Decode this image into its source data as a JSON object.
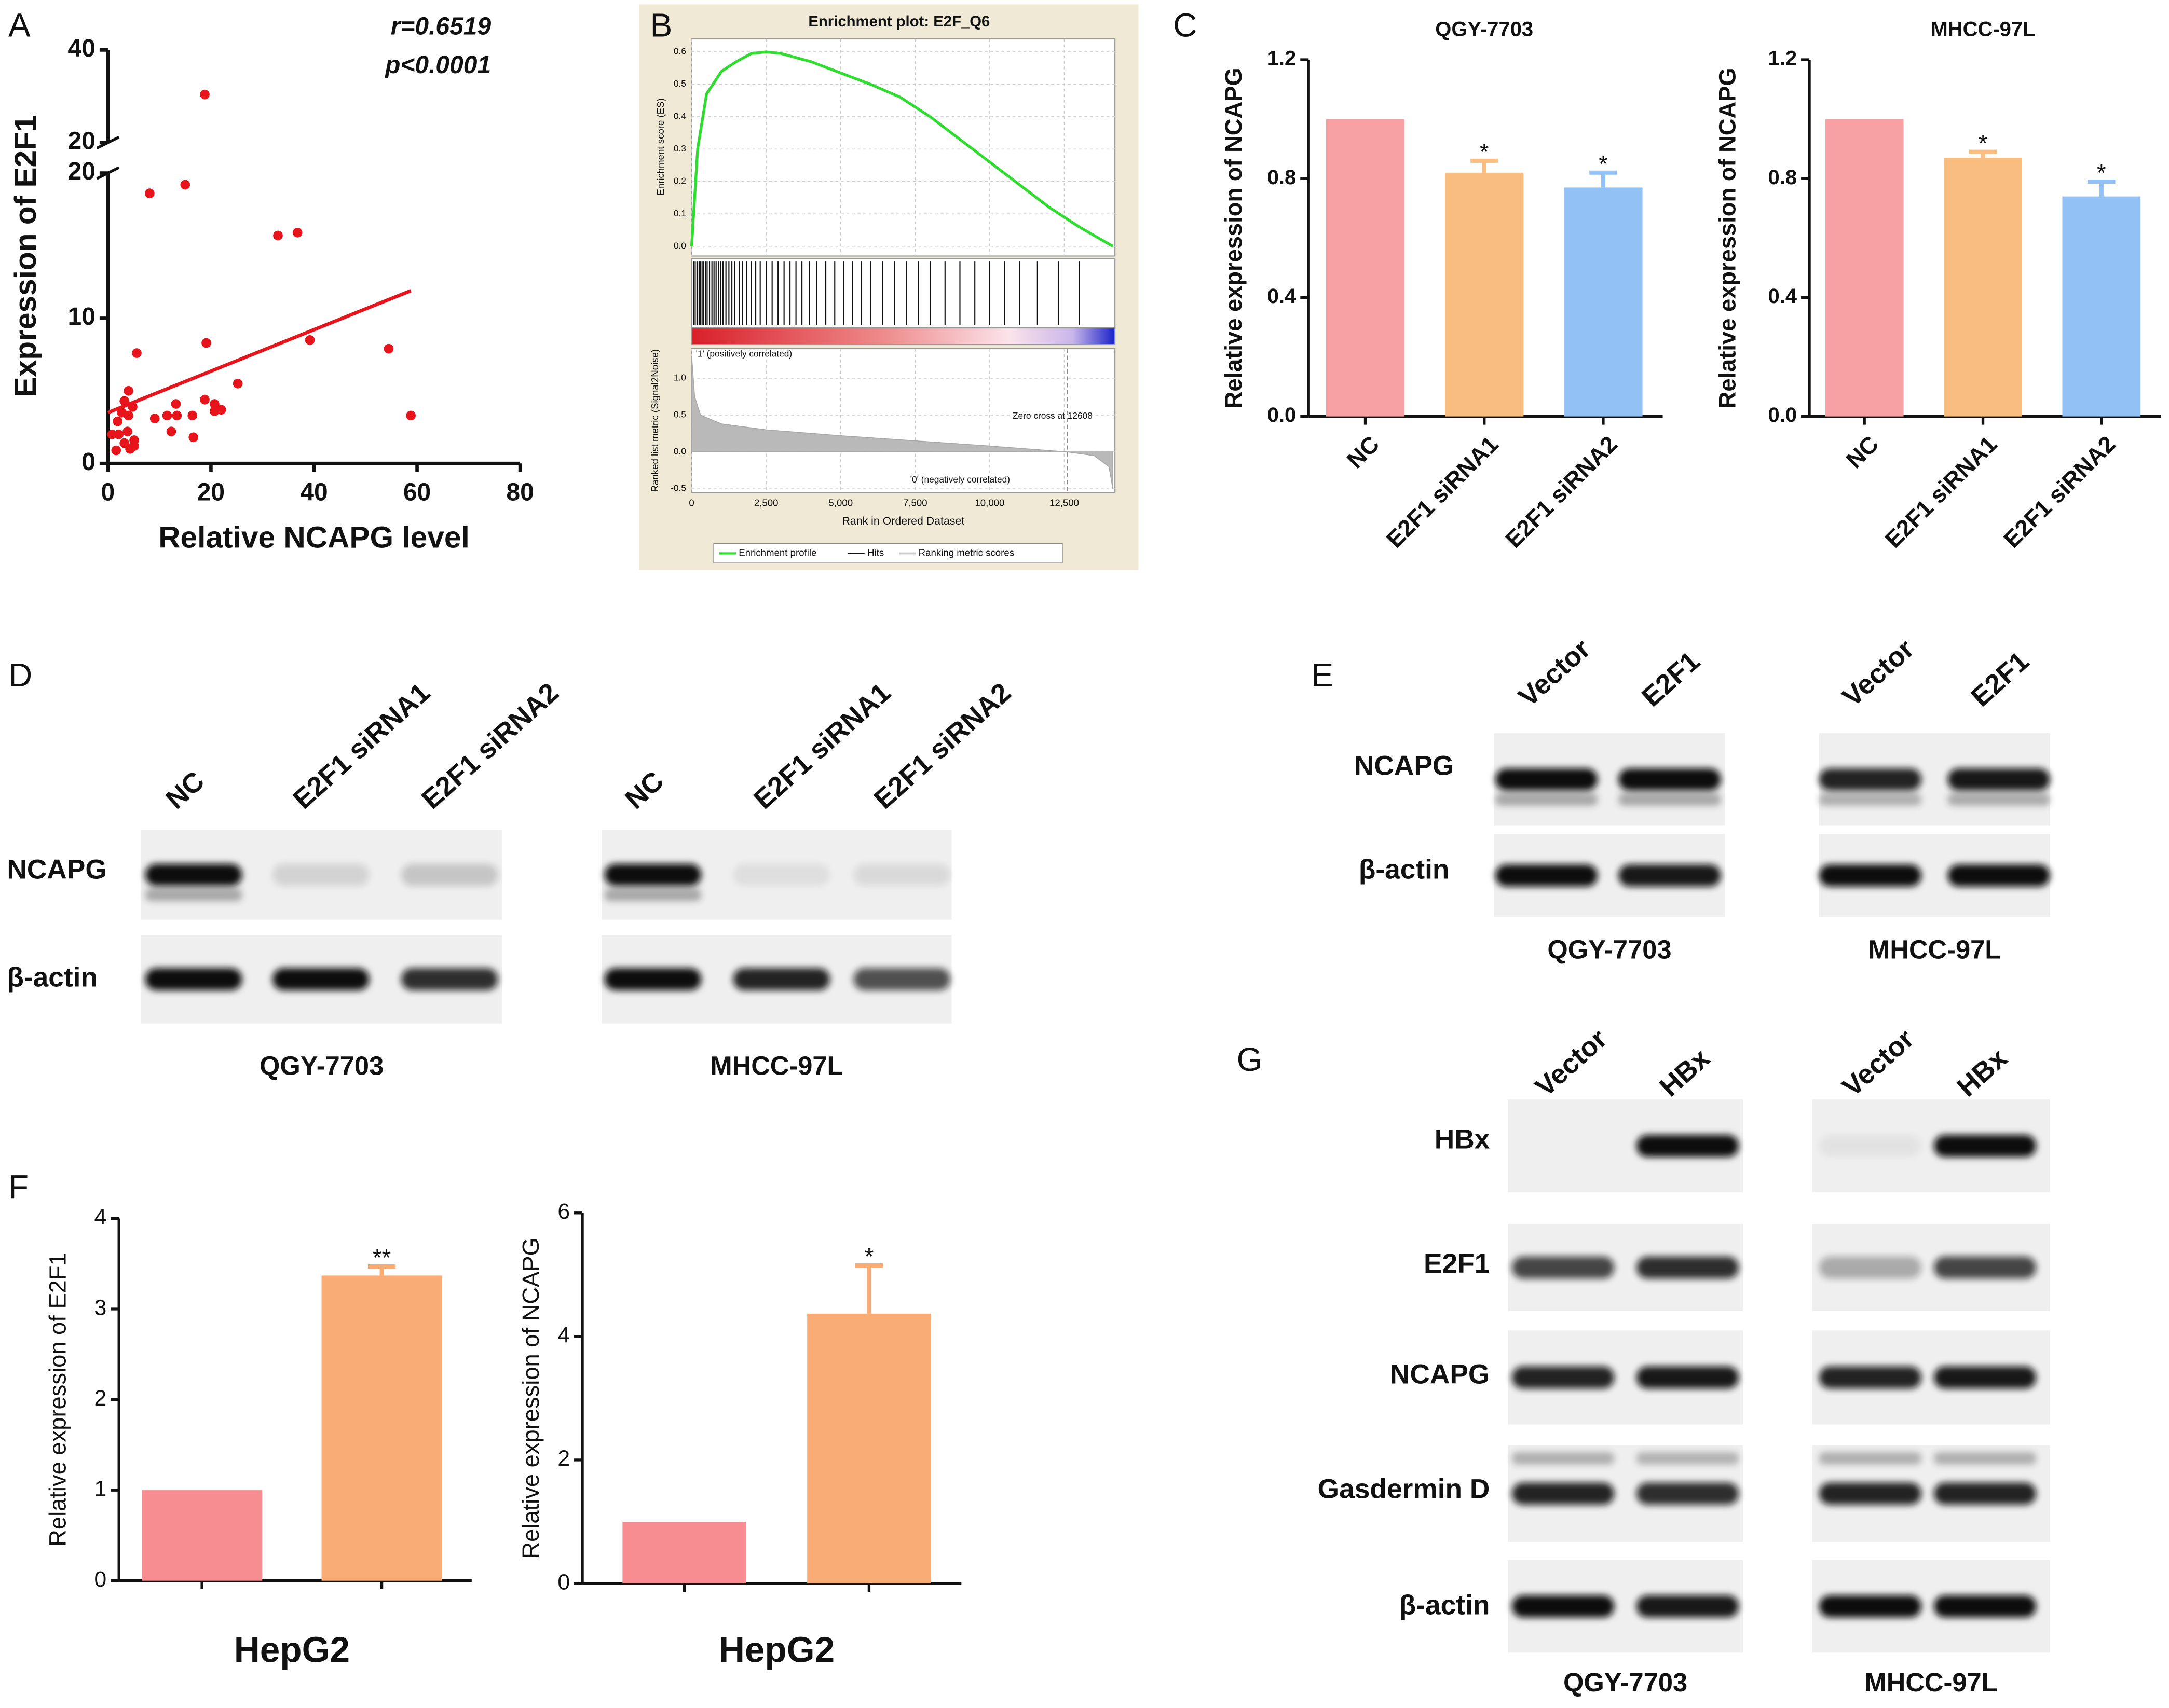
{
  "chart_data": [
    {
      "type": "scatter",
      "panel": "A",
      "x_label": "Relative NCAPG level",
      "y_label": "Expression of E2F1",
      "annotations": [
        "r=0.6519",
        "p<0.0001"
      ],
      "color": "#e8141b",
      "x": [
        18.8,
        8.1,
        15.0,
        33.0,
        36.8,
        19.1,
        39.2,
        54.5,
        5.6,
        58.8,
        25.2,
        18.8,
        20.7,
        22.0,
        20.7,
        16.4,
        13.2,
        13.4,
        11.5,
        9.1,
        12.3,
        16.6,
        4.0,
        3.2,
        4.8,
        2.7,
        1.9,
        4.0,
        0.8,
        2.1,
        3.8,
        5.1,
        3.2,
        1.6,
        4.3,
        5.1
      ],
      "y": [
        30.4,
        18.6,
        19.2,
        15.7,
        15.9,
        8.3,
        8.5,
        7.9,
        7.6,
        3.3,
        5.5,
        4.4,
        4.1,
        3.7,
        3.6,
        3.3,
        4.1,
        3.3,
        3.3,
        3.1,
        2.2,
        1.8,
        5.0,
        4.3,
        3.9,
        3.5,
        2.9,
        3.3,
        2.0,
        2.0,
        2.2,
        1.6,
        1.4,
        0.9,
        1.0,
        1.2
      ],
      "fit": {
        "x": [
          0,
          58.8
        ],
        "y": [
          3.5,
          11.9
        ]
      },
      "xlim": [
        0,
        80
      ],
      "xticks": [
        0,
        20,
        40,
        60,
        80
      ],
      "ysegments": [
        {
          "ylim": [
            0,
            20
          ],
          "yticks": [
            0,
            10,
            20
          ]
        },
        {
          "ylim": [
            20,
            40
          ],
          "yticks": [
            20,
            40
          ]
        }
      ]
    },
    {
      "type": "gsea",
      "panel": "B",
      "title": "Enrichment plot: E2F_Q6",
      "x_label": "Rank in Ordered Dataset",
      "es_label": "Enrichment score (ES)",
      "metric_label": "Ranked list metric (Signal2Noise)",
      "xlim": [
        0,
        14200
      ],
      "xticks": [
        0,
        {
          "value": 2500,
          "label": "2,500"
        },
        {
          "value": 5000,
          "label": "5,000"
        },
        {
          "value": 7500,
          "label": "7,500"
        },
        {
          "value": 10000,
          "label": "10,000"
        },
        {
          "value": 12500,
          "label": "12,500"
        }
      ],
      "es_ylim": [
        -0.03,
        0.64
      ],
      "es_yticks": [
        {
          "value": 0,
          "label": "0.0"
        },
        0.1,
        0.2,
        0.3,
        0.4,
        0.5,
        0.6
      ],
      "metric_ylim": [
        -0.55,
        1.4
      ],
      "metric_yticks": [
        -0.5,
        {
          "value": 0,
          "label": "0.0"
        },
        0.5,
        {
          "value": 1,
          "label": "1.0"
        }
      ],
      "es": {
        "color": "#2fdc2f",
        "x": [
          0,
          200,
          500,
          1000,
          1500,
          2000,
          2500,
          3000,
          4000,
          5000,
          6000,
          7000,
          8000,
          9000,
          10000,
          11000,
          12000,
          13000,
          14130
        ],
        "values": [
          0,
          0.3,
          0.47,
          0.54,
          0.57,
          0.595,
          0.6,
          0.595,
          0.57,
          0.535,
          0.5,
          0.46,
          0.4,
          0.33,
          0.26,
          0.19,
          0.12,
          0.06,
          0
        ]
      },
      "hits": [
        60,
        120,
        180,
        250,
        300,
        350,
        400,
        470,
        520,
        600,
        680,
        750,
        820,
        900,
        980,
        1050,
        1150,
        1250,
        1350,
        1450,
        1600,
        1700,
        1850,
        2000,
        2150,
        2300,
        2500,
        2700,
        2900,
        3100,
        3300,
        3500,
        3700,
        3950,
        4200,
        4500,
        4800,
        5100,
        5400,
        5700,
        6000,
        6400,
        6800,
        7200,
        7600,
        8000,
        8500,
        9000,
        9500,
        10000,
        10500,
        11000,
        11600,
        12300,
        13000
      ],
      "metric": {
        "x": [
          0,
          100,
          300,
          1000,
          2500,
          5000,
          7500,
          10000,
          12608,
          13500,
          14000,
          14130
        ],
        "values": [
          1.3,
          0.75,
          0.5,
          0.38,
          0.3,
          0.22,
          0.15,
          0.08,
          0,
          -0.05,
          -0.2,
          -0.5
        ]
      },
      "zero_cross": 12608,
      "annotations": [
        "'1' (positively correlated)",
        "'0' (negatively correlated)",
        "Zero cross at 12608"
      ],
      "legend": [
        "Enrichment profile",
        "Hits",
        "Ranking metric scores"
      ]
    },
    {
      "type": "bar",
      "panel": "C",
      "title": "QGY-7703",
      "y_label": "Relative expression of NCAPG",
      "categories": [
        "NC",
        "E2F1 siRNA1",
        "E2F1 siRNA2"
      ],
      "values": [
        1.0,
        0.82,
        0.77
      ],
      "errors": [
        null,
        0.04,
        0.05
      ],
      "significance": [
        null,
        "*",
        "*"
      ],
      "colors": [
        "#f8a1a4",
        "#f9be7f",
        "#91c1f5"
      ],
      "ylim": [
        0,
        1.2
      ],
      "yticks": [
        {
          "value": 0,
          "label": "0.0"
        },
        0.4,
        0.8,
        1.2
      ]
    },
    {
      "type": "bar",
      "title": "MHCC-97L",
      "y_label": "Relative expression of NCAPG",
      "categories": [
        "NC",
        "E2F1 siRNA1",
        "E2F1 siRNA2"
      ],
      "values": [
        1.0,
        0.87,
        0.74
      ],
      "errors": [
        null,
        0.02,
        0.05
      ],
      "significance": [
        null,
        "*",
        "*"
      ],
      "colors": [
        "#f8a1a4",
        "#f9be7f",
        "#91c1f5"
      ],
      "ylim": [
        0,
        1.2
      ],
      "yticks": [
        {
          "value": 0,
          "label": "0.0"
        },
        0.4,
        0.8,
        1.2
      ]
    },
    {
      "type": "bar",
      "panel": "F",
      "x_label": "HepG2",
      "y_label": "Relative expression of E2F1",
      "categories": [
        null,
        null
      ],
      "values": [
        1,
        3.37
      ],
      "errors": [
        null,
        0.1
      ],
      "significance": [
        null,
        "**"
      ],
      "colors": [
        "#f78d90",
        "#f9ad74"
      ],
      "ylim": [
        0,
        4
      ],
      "yticks": [
        0,
        1,
        2,
        3,
        4
      ]
    },
    {
      "type": "bar",
      "x_label": "HepG2",
      "y_label": "Relative expression of NCAPG",
      "categories": [
        null,
        null
      ],
      "values": [
        1,
        4.37
      ],
      "errors": [
        null,
        0.78
      ],
      "significance": [
        null,
        "*"
      ],
      "colors": [
        "#f78d90",
        "#f9ad74"
      ],
      "ylim": [
        0,
        6
      ],
      "yticks": [
        0,
        2,
        4,
        6
      ]
    }
  ],
  "blots": [
    {
      "panel": "D",
      "lanes": [
        "NC",
        "E2F1 siRNA1",
        "E2F1 siRNA2"
      ],
      "proteins": [
        "NCAPG",
        "β-actin"
      ],
      "cell_lines": [
        "QGY-7703",
        "MHCC-97L"
      ]
    },
    {
      "panel": "E",
      "lanes": [
        "Vector",
        "E2F1"
      ],
      "proteins": [
        "NCAPG",
        "β-actin"
      ],
      "cell_lines": [
        "QGY-7703",
        "MHCC-97L"
      ]
    },
    {
      "panel": "G",
      "lanes": [
        "Vector",
        "HBx"
      ],
      "proteins": [
        "HBx",
        "E2F1",
        "NCAPG",
        "Gasdermin D",
        "β-actin"
      ],
      "cell_lines": [
        "QGY-7703",
        "MHCC-97L"
      ]
    }
  ]
}
